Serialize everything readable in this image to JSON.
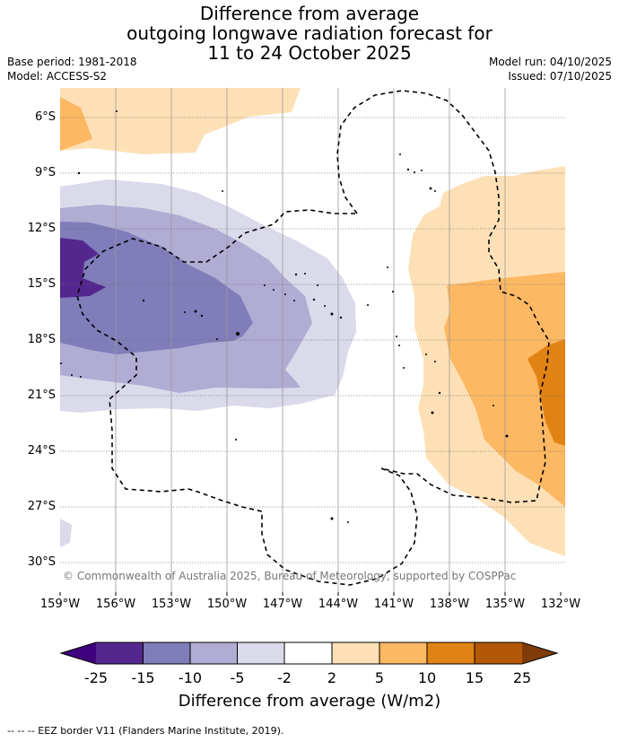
{
  "title": {
    "line1": "Difference from average",
    "line2": "outgoing longwave radiation forecast for",
    "line3": "11 to 24 October 2025"
  },
  "meta": {
    "base_period": "Base period: 1981-2018",
    "model": "Model: ACCESS-S2",
    "model_run": "Model run: 04/10/2025",
    "issued": "Issued: 07/10/2025"
  },
  "map": {
    "lat_labels": [
      "6°S",
      "9°S",
      "12°S",
      "15°S",
      "18°S",
      "21°S",
      "24°S",
      "27°S",
      "30°S"
    ],
    "lon_labels": [
      "159°W",
      "156°W",
      "153°W",
      "150°W",
      "147°W",
      "144°W",
      "141°W",
      "138°W",
      "135°W",
      "132°W"
    ],
    "copyright": "© Commonwealth of Australia 2025, Bureau of Meteorology, supported by COSPPac"
  },
  "colorbar": {
    "ticks": [
      "-25",
      "-15",
      "-10",
      "-5",
      "-2",
      "2",
      "5",
      "10",
      "15",
      "25"
    ],
    "colors": [
      "#3f007d",
      "#54278f",
      "#807dba",
      "#b1acd3",
      "#dadaeb",
      "#ffffff",
      "#fee0b6",
      "#fdb863",
      "#e08214",
      "#b35806",
      "#7f3b08"
    ],
    "label": "Difference from average (W/m2)"
  },
  "footer": "--  --  -- EEZ border V11 (Flanders Marine Institute, 2019)."
}
